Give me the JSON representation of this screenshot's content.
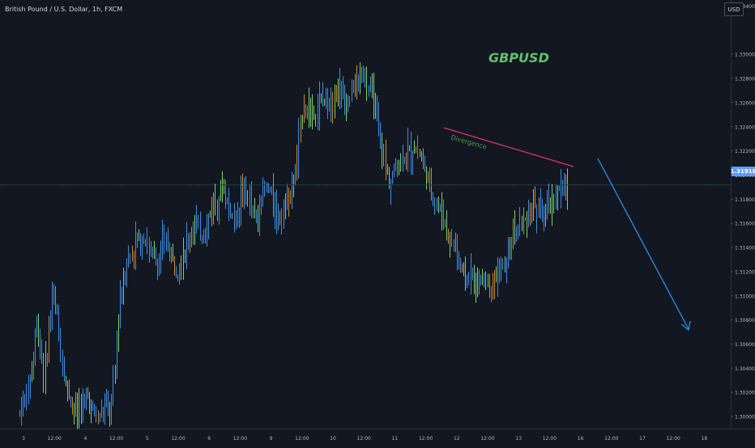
{
  "header": {
    "symbol_title": "British Pound / U.S. Dollar, 1h, FXCM",
    "currency": "USD"
  },
  "annotation": {
    "pair_label": "GBPUSD",
    "divergence_label": "Divergence"
  },
  "colors": {
    "background": "#131722",
    "axis_text": "#b2b5be",
    "bar_blue": "#3d8fe0",
    "bar_green": "#7ad16c",
    "bar_orange": "#c9882f",
    "trendline": "#e0306b",
    "arrow": "#2d8fe6",
    "price_line": "#2a6b4f",
    "price_badge": "#5b9cf6",
    "pair_label": "#5ec36a"
  },
  "chart_data": {
    "type": "ohlc",
    "title": "British Pound / U.S. Dollar, 1h, FXCM",
    "ylim": [
      1.299,
      1.3345
    ],
    "y_ticks": [
      "1.33400",
      "1.33000",
      "1.32800",
      "1.32600",
      "1.32400",
      "1.32200",
      "1.32000",
      "1.31800",
      "1.31600",
      "1.31400",
      "1.31200",
      "1.31000",
      "1.30800",
      "1.30600",
      "1.30400",
      "1.30200",
      "1.30000"
    ],
    "x_ticks": [
      "3",
      "12:00",
      "4",
      "12:00",
      "5",
      "12:00",
      "6",
      "12:00",
      "9",
      "12:00",
      "10",
      "12:00",
      "11",
      "12:00",
      "12",
      "12:00",
      "13",
      "12:00",
      "16",
      "12:00",
      "17",
      "12:00",
      "18"
    ],
    "current_price": "1.31918",
    "trendline": {
      "from": {
        "x": "11 14:00",
        "y": 1.3228
      },
      "to": {
        "x": "13 13:00",
        "y": 1.3198
      }
    },
    "forecast_arrow": {
      "from": {
        "x": "16 00:00",
        "y": 1.32
      },
      "to": {
        "x": "17 16:00",
        "y": 1.3078
      }
    },
    "price_path": [
      [
        1.3003,
        1.3012,
        1.3025,
        1.3044,
        1.3081,
        1.3058,
        1.3032,
        1.3072,
        1.3102,
        1.3082,
        1.3054,
        1.3026,
        1.3018,
        1.3008,
        1.3003
      ],
      [
        1.3008,
        1.3018,
        1.301,
        1.3002,
        1.2998,
        1.3005,
        1.301,
        1.3004,
        1.304,
        1.3094,
        1.3112,
        1.313,
        1.3138,
        1.3148,
        1.3141
      ],
      [
        1.3152,
        1.3141,
        1.3133,
        1.3125,
        1.3134,
        1.3146,
        1.3138,
        1.313,
        1.3124,
        1.3132,
        1.314,
        1.315,
        1.3162,
        1.3158,
        1.3149
      ],
      [
        1.3156,
        1.317,
        1.3178,
        1.3186,
        1.319,
        1.318,
        1.317,
        1.3163,
        1.3176,
        1.319,
        1.3182,
        1.317,
        1.3163,
        1.3177,
        1.3186
      ],
      [
        1.3188,
        1.3178,
        1.3172,
        1.3168,
        1.3176,
        1.3185,
        1.3192,
        1.3212,
        1.3252,
        1.326,
        1.3247,
        1.3252,
        1.3256,
        1.3262,
        1.3266
      ],
      [
        1.3262,
        1.327,
        1.3275,
        1.3268,
        1.3262,
        1.3268,
        1.3275,
        1.328,
        1.3283,
        1.3272,
        1.3264,
        1.3258,
        1.323,
        1.321,
        1.3196
      ],
      [
        1.32,
        1.3206,
        1.3214,
        1.322,
        1.3216,
        1.3224,
        1.322,
        1.3212,
        1.3202,
        1.3192,
        1.3182,
        1.3174,
        1.3168,
        1.3158,
        1.3144
      ],
      [
        1.3144,
        1.3128,
        1.312,
        1.3116,
        1.3113,
        1.311,
        1.3112,
        1.3114,
        1.3112,
        1.3112,
        1.3116,
        1.312,
        1.3124,
        1.3135,
        1.3148
      ],
      [
        1.3152,
        1.3158,
        1.3166,
        1.3176,
        1.317,
        1.3168,
        1.3172,
        1.318,
        1.3188,
        1.319,
        1.3192
      ]
    ]
  }
}
